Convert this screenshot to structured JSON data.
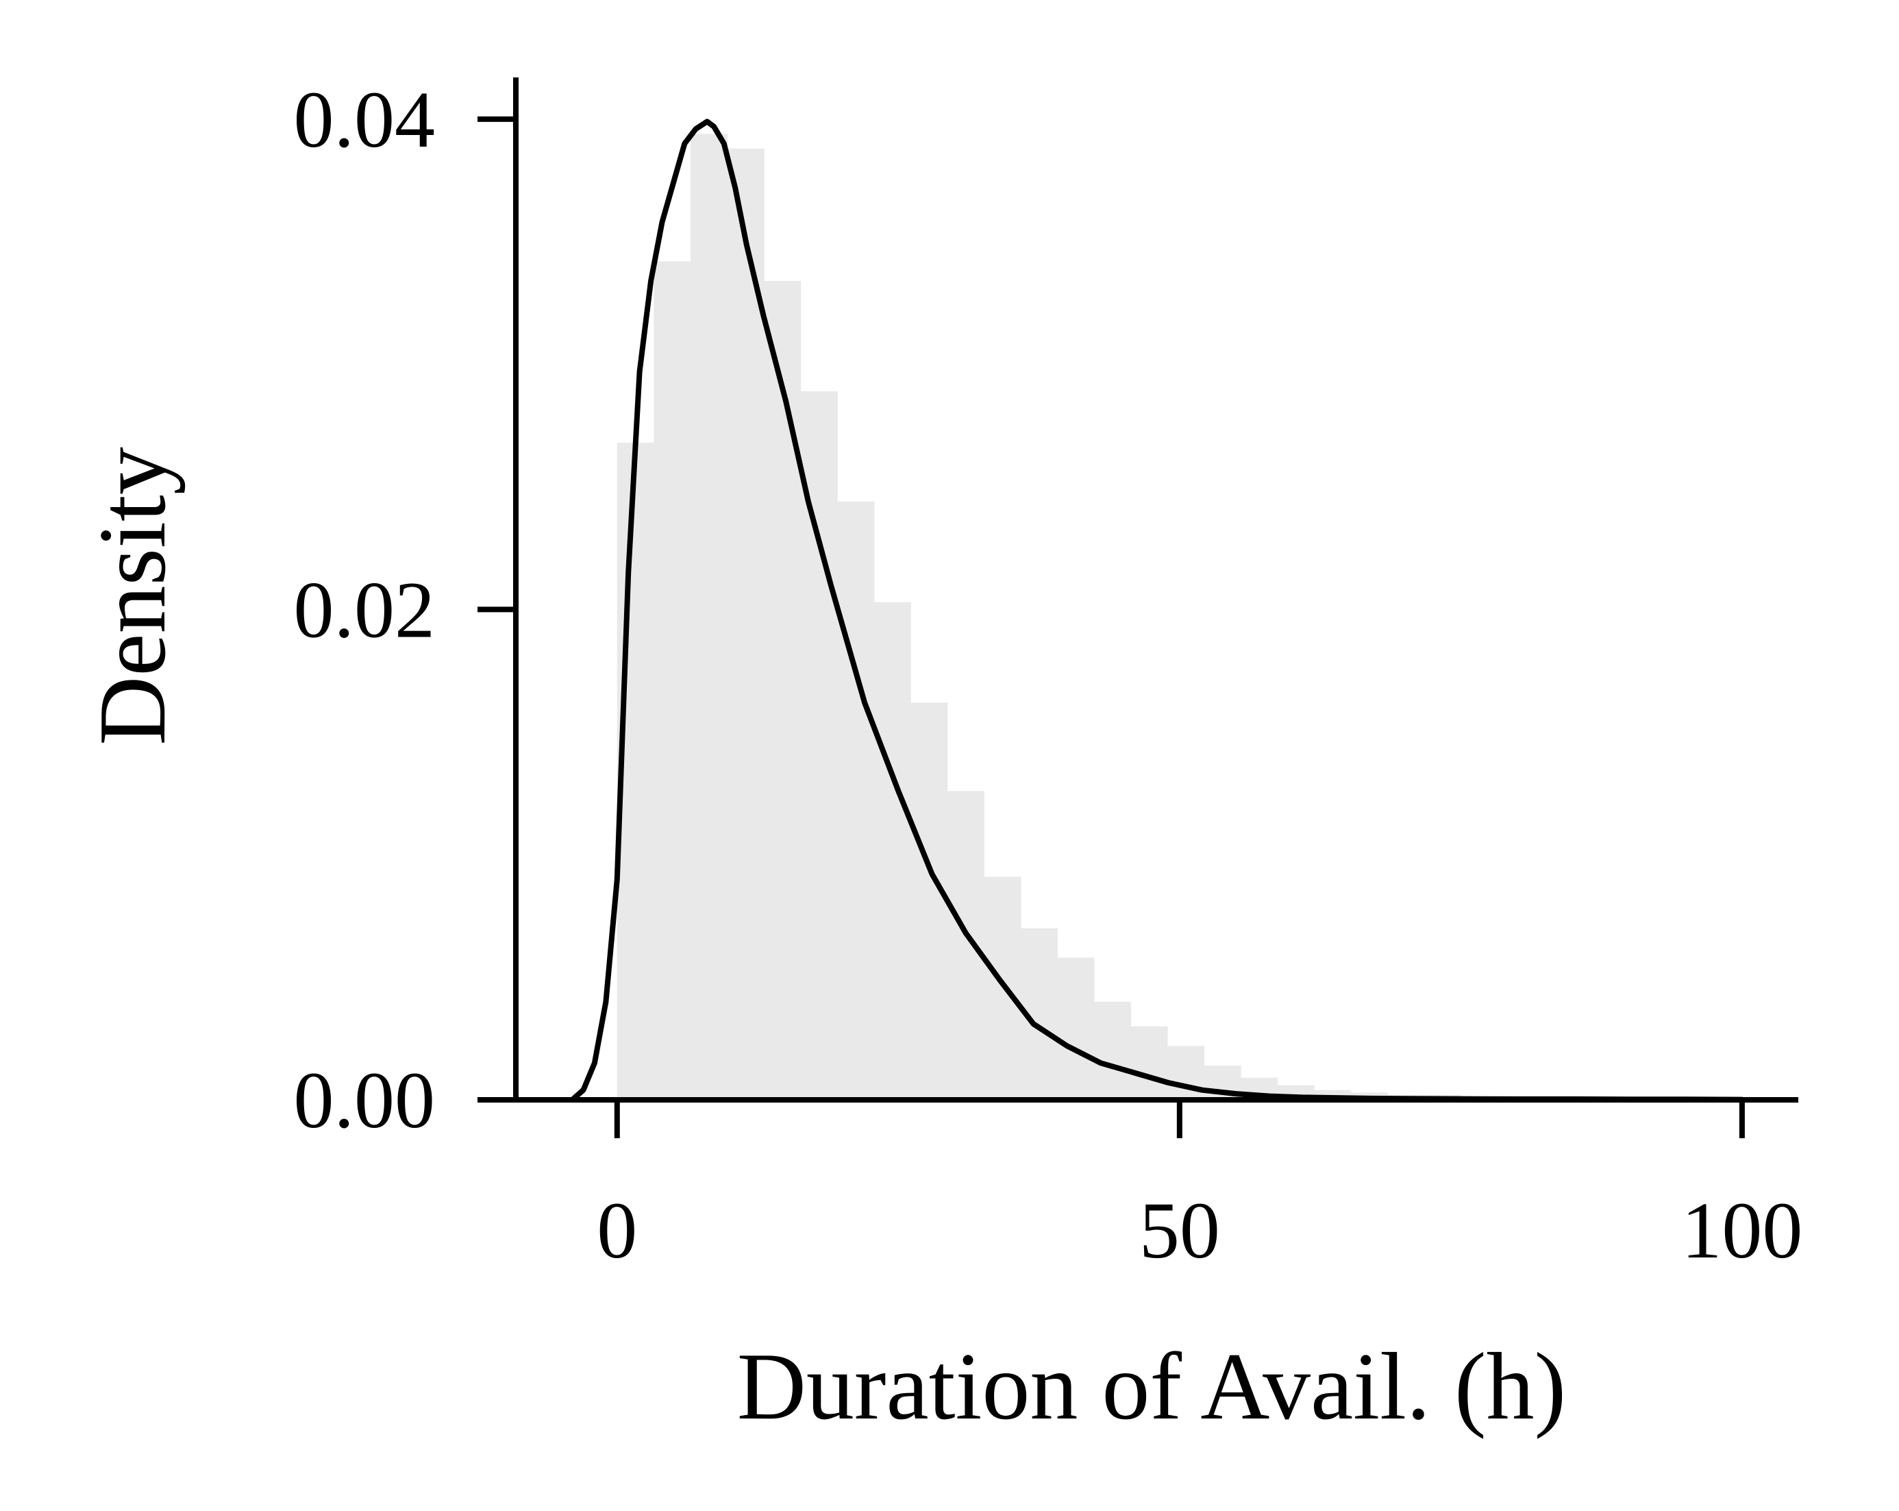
{
  "chart_data": {
    "type": "area",
    "xlabel": "Duration of Avail. (h)",
    "ylabel": "Density",
    "xlim": [
      -9,
      105
    ],
    "ylim": [
      0,
      0.0417
    ],
    "xticks": [
      0,
      50,
      100
    ],
    "xtick_labels": [
      "0",
      "50",
      "100"
    ],
    "yticks": [
      0,
      0.02,
      0.04
    ],
    "ytick_labels": [
      "0.00",
      "0.02",
      "0.04"
    ],
    "grid": false,
    "legend": "none",
    "colors": {
      "histogram_fill": "#e9e9e9",
      "kde_line": "#000000",
      "axes": "#000000"
    },
    "histogram": {
      "bin_width": 3.26,
      "bins": [
        {
          "x0": 0.0,
          "density": 0.0268
        },
        {
          "x0": 3.26,
          "density": 0.0342
        },
        {
          "x0": 6.52,
          "density": 0.0394
        },
        {
          "x0": 9.78,
          "density": 0.0388
        },
        {
          "x0": 13.04,
          "density": 0.0334
        },
        {
          "x0": 16.3,
          "density": 0.0289
        },
        {
          "x0": 19.56,
          "density": 0.0244
        },
        {
          "x0": 22.82,
          "density": 0.0203
        },
        {
          "x0": 26.08,
          "density": 0.0162
        },
        {
          "x0": 29.34,
          "density": 0.0126
        },
        {
          "x0": 32.6,
          "density": 0.0091
        },
        {
          "x0": 35.86,
          "density": 0.007
        },
        {
          "x0": 39.12,
          "density": 0.0058
        },
        {
          "x0": 42.38,
          "density": 0.004
        },
        {
          "x0": 45.64,
          "density": 0.003
        },
        {
          "x0": 48.9,
          "density": 0.0022
        },
        {
          "x0": 52.16,
          "density": 0.0014
        },
        {
          "x0": 55.42,
          "density": 0.0009
        },
        {
          "x0": 58.68,
          "density": 0.0006
        },
        {
          "x0": 61.94,
          "density": 0.0004
        },
        {
          "x0": 65.2,
          "density": 0.0003
        },
        {
          "x0": 68.46,
          "density": 0.0002
        },
        {
          "x0": 71.72,
          "density": 0.0002
        },
        {
          "x0": 74.98,
          "density": 0.0001
        },
        {
          "x0": 78.24,
          "density": 0.0001
        },
        {
          "x0": 81.5,
          "density": 0.0001
        },
        {
          "x0": 84.76,
          "density": 0.0001
        },
        {
          "x0": 88.02,
          "density": 0.0001
        },
        {
          "x0": 91.28,
          "density": 0.0001
        },
        {
          "x0": 94.54,
          "density": 0.0001
        },
        {
          "x0": 97.8,
          "density": 0.0001
        }
      ]
    },
    "kde": {
      "x": [
        -4.0,
        -3.0,
        -2.0,
        -1.0,
        0.0,
        1.0,
        2.0,
        3.0,
        4.0,
        5.0,
        6.0,
        7.0,
        8.0,
        8.6,
        9.5,
        10.5,
        11.5,
        13.0,
        15.0,
        17.0,
        19.0,
        22.0,
        25.0,
        28.0,
        31.0,
        34.0,
        37.0,
        40.0,
        43.0,
        46.0,
        49.0,
        52.0,
        55.0,
        58.0,
        61.0,
        64.0,
        67.0,
        70.0,
        75.0,
        80.0,
        85.0,
        90.0,
        95.0,
        100.0
      ],
      "y": [
        0.0,
        0.0004,
        0.0015,
        0.004,
        0.009,
        0.0215,
        0.0297,
        0.0334,
        0.0358,
        0.0374,
        0.039,
        0.0396,
        0.0399,
        0.0397,
        0.039,
        0.0372,
        0.0349,
        0.032,
        0.0285,
        0.0244,
        0.021,
        0.0162,
        0.0126,
        0.0092,
        0.0068,
        0.0049,
        0.0031,
        0.0022,
        0.0015,
        0.0011,
        0.0007,
        0.0004,
        0.00025,
        0.00015,
        0.0001,
        8e-05,
        6e-05,
        5e-05,
        4e-05,
        3e-05,
        3e-05,
        2e-05,
        2e-05,
        1e-05
      ]
    }
  }
}
